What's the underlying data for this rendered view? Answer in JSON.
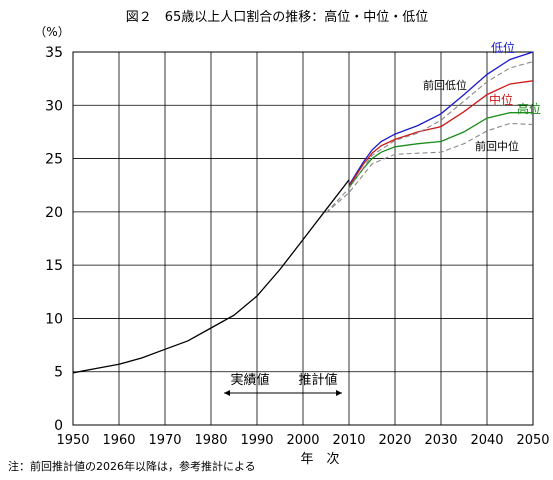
{
  "chart_data": {
    "type": "line",
    "title": "図２　65歳以上人口割合の推移：高位・中位・低位",
    "ylabel": "（%）",
    "xlabel": "年　次",
    "note": "注：前回推計値の2026年以降は，参考推計による",
    "xlim": [
      1950,
      2050
    ],
    "ylim": [
      0,
      35
    ],
    "x_ticks": [
      "1950",
      "1960",
      "1970",
      "1980",
      "1990",
      "2000",
      "2010",
      "2020",
      "2030",
      "2040",
      "2050"
    ],
    "y_ticks": [
      "0",
      "5",
      "10",
      "15",
      "20",
      "25",
      "30",
      "35"
    ],
    "grid": true,
    "annotations": {
      "actual": "実績値",
      "projection": "推計値"
    },
    "series": [
      {
        "name": "実績値",
        "color": "#000000",
        "dashed": false,
        "x": [
          1950,
          1955,
          1960,
          1965,
          1970,
          1975,
          1980,
          1985,
          1990,
          1995,
          2000,
          2005,
          2010
        ],
        "y": [
          4.9,
          5.3,
          5.7,
          6.3,
          7.1,
          7.9,
          9.1,
          10.3,
          12.1,
          14.6,
          17.4,
          20.2,
          23.0
        ]
      },
      {
        "name": "低位",
        "color": "#1a1acc",
        "dashed": false,
        "x": [
          2010,
          2013,
          2015,
          2017,
          2020,
          2025,
          2030,
          2035,
          2040,
          2045,
          2050
        ],
        "y": [
          22.5,
          24.6,
          25.8,
          26.6,
          27.3,
          28.1,
          29.2,
          31.0,
          32.9,
          34.3,
          35.0
        ]
      },
      {
        "name": "中位",
        "color": "#cc1a1a",
        "dashed": false,
        "x": [
          2010,
          2013,
          2015,
          2017,
          2020,
          2025,
          2030,
          2035,
          2040,
          2045,
          2050
        ],
        "y": [
          22.4,
          24.4,
          25.5,
          26.2,
          26.8,
          27.5,
          28.0,
          29.4,
          31.0,
          32.0,
          32.3
        ]
      },
      {
        "name": "高位",
        "color": "#1a8c1a",
        "dashed": false,
        "x": [
          2010,
          2013,
          2015,
          2017,
          2020,
          2025,
          2030,
          2035,
          2040,
          2045,
          2050
        ],
        "y": [
          22.3,
          24.0,
          25.0,
          25.6,
          26.1,
          26.4,
          26.6,
          27.5,
          28.8,
          29.3,
          29.3
        ]
      },
      {
        "name": "前回低位",
        "color": "#888888",
        "dashed": true,
        "x": [
          2005,
          2010,
          2015,
          2020,
          2025,
          2030,
          2035,
          2040,
          2045,
          2050
        ],
        "y": [
          19.9,
          22.2,
          25.3,
          26.7,
          27.4,
          28.6,
          30.4,
          32.2,
          33.5,
          34.1
        ]
      },
      {
        "name": "前回中位",
        "color": "#888888",
        "dashed": true,
        "x": [
          2005,
          2010,
          2015,
          2020,
          2025,
          2030,
          2035,
          2040,
          2045,
          2050
        ],
        "y": [
          19.9,
          21.8,
          24.5,
          25.4,
          25.5,
          25.6,
          26.4,
          27.6,
          28.3,
          28.2
        ]
      }
    ]
  }
}
